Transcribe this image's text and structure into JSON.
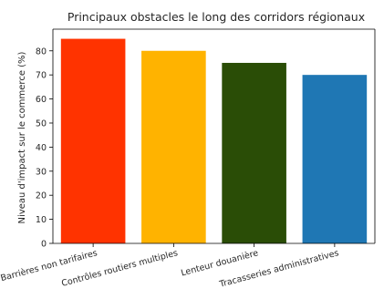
{
  "chart_data": {
    "type": "bar",
    "title": "Principaux obstacles le long des corridors régionaux",
    "xlabel": "",
    "ylabel": "Niveau d'impact sur le commerce (%)",
    "categories": [
      "Barrières non tarifaires",
      "Contrôles routiers multiples",
      "Lenteur douanière",
      "Tracasseries administratives"
    ],
    "values": [
      85,
      80,
      75,
      70
    ],
    "colors": [
      "#ff3300",
      "#ffb300",
      "#2a4d06",
      "#1f77b4"
    ],
    "ylim": [
      0,
      89
    ],
    "yticks": [
      0,
      10,
      20,
      30,
      40,
      50,
      60,
      70,
      80
    ],
    "grid": false,
    "legend": "none"
  }
}
